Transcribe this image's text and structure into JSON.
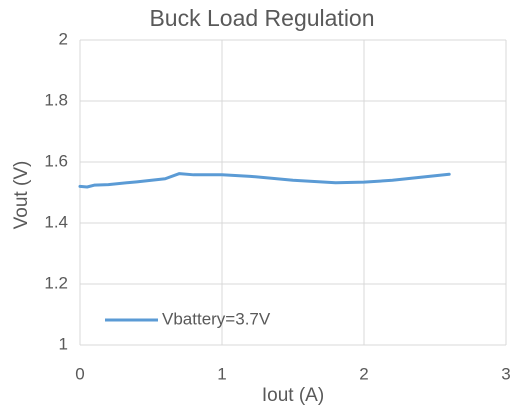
{
  "chart_data": {
    "type": "line",
    "title": "Buck Load Regulation",
    "x_label": "Iout (A)",
    "y_label": "Vout (V)",
    "x": [
      0,
      0.05,
      0.1,
      0.2,
      0.4,
      0.6,
      0.7,
      0.8,
      1.0,
      1.2,
      1.5,
      1.8,
      2.0,
      2.2,
      2.4,
      2.6
    ],
    "series": [
      {
        "name": "Vbattery=3.7V",
        "color": "#5b9bd5",
        "values": [
          1.52,
          1.518,
          1.524,
          1.526,
          1.535,
          1.545,
          1.562,
          1.558,
          1.558,
          1.553,
          1.54,
          1.532,
          1.534,
          1.54,
          1.55,
          1.56
        ]
      }
    ],
    "xlim": [
      0,
      3
    ],
    "xticks": [
      0,
      1,
      2,
      3
    ],
    "ylim": [
      1,
      2
    ],
    "yticks": [
      1,
      1.2,
      1.4,
      1.6,
      1.8,
      2
    ],
    "grid": true,
    "legend": "lower-left"
  }
}
